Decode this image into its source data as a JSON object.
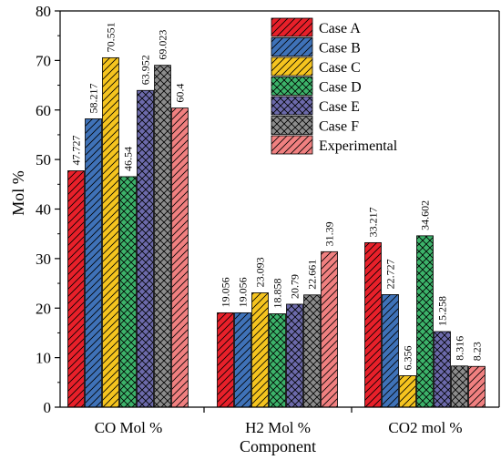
{
  "chart_data": {
    "type": "bar",
    "title": "",
    "xlabel": "Component",
    "ylabel": "Mol %",
    "ylim": [
      0,
      80
    ],
    "yticks": [
      0,
      10,
      20,
      30,
      40,
      50,
      60,
      70,
      80
    ],
    "grid": false,
    "legend_position": "top-right",
    "categories": [
      "CO Mol %",
      "H2 Mol %",
      "CO2 mol %"
    ],
    "series": [
      {
        "name": "Case A",
        "values": [
          47.727,
          19.056,
          33.217
        ],
        "color": "#e8202a",
        "pattern": "diag"
      },
      {
        "name": "Case B",
        "values": [
          58.217,
          19.056,
          22.727
        ],
        "color": "#3f72b8",
        "pattern": "diag"
      },
      {
        "name": "Case C",
        "values": [
          70.551,
          23.093,
          6.356
        ],
        "color": "#f5c41f",
        "pattern": "diag"
      },
      {
        "name": "Case D",
        "values": [
          46.54,
          18.858,
          34.602
        ],
        "color": "#3cb36a",
        "pattern": "cross"
      },
      {
        "name": "Case E",
        "values": [
          63.952,
          20.79,
          15.258
        ],
        "color": "#6c6aab",
        "pattern": "cross"
      },
      {
        "name": "Case F",
        "values": [
          69.023,
          22.661,
          8.316
        ],
        "color": "#8c8c8c",
        "pattern": "cross"
      },
      {
        "name": "Experimental",
        "values": [
          60.4,
          31.39,
          8.23
        ],
        "color": "#f08080",
        "pattern": "diag"
      }
    ],
    "data_labels": [
      [
        "47.727",
        "19.056",
        "33.217"
      ],
      [
        "58.217",
        "19.056",
        "22.727"
      ],
      [
        "70.551",
        "23.093",
        "6.356"
      ],
      [
        "46.54",
        "18.858",
        "34.602"
      ],
      [
        "63.952",
        "20.79",
        "15.258"
      ],
      [
        "69.023",
        "22.661",
        "8.316"
      ],
      [
        "60.4",
        "31.39",
        "8.23"
      ]
    ]
  }
}
